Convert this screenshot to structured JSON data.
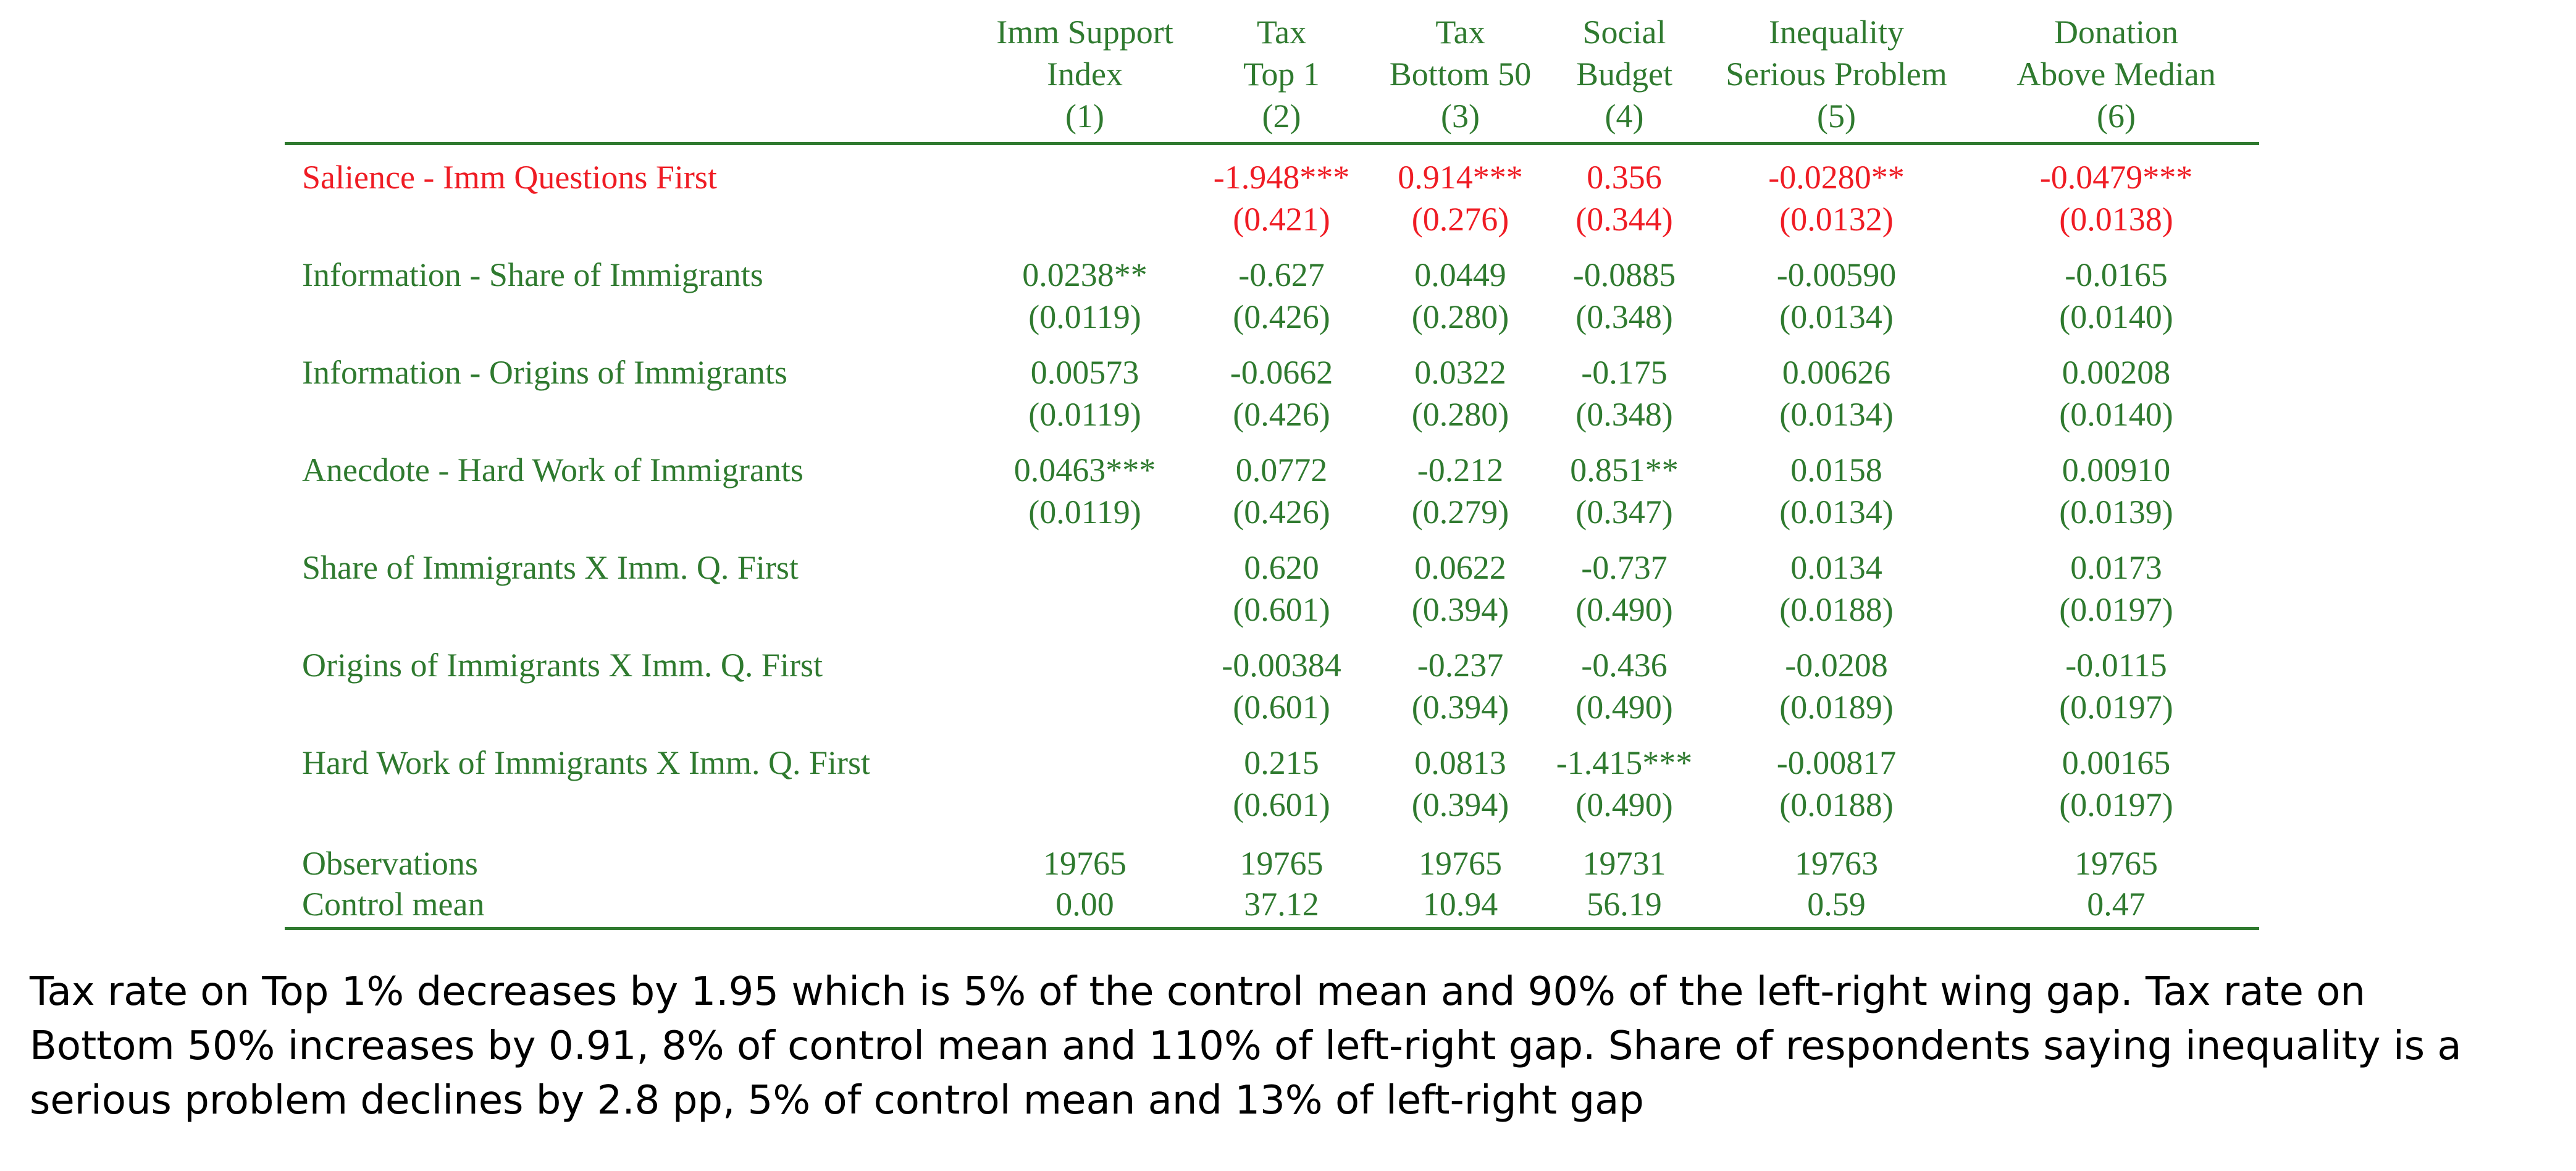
{
  "table": {
    "header": {
      "col1": [
        "Imm Support",
        "Index",
        "(1)"
      ],
      "col2": [
        "Tax",
        "Top 1",
        "(2)"
      ],
      "col3": [
        "Tax",
        "Bottom 50",
        "(3)"
      ],
      "col4": [
        "Social",
        "Budget",
        "(4)"
      ],
      "col5": [
        "Inequality",
        "Serious Problem",
        "(5)"
      ],
      "col6": [
        "Donation",
        "Above Median",
        "(6)"
      ]
    },
    "rows": [
      {
        "label": "Salience - Imm Questions First",
        "coef": [
          "",
          "-1.948***",
          "0.914***",
          "0.356",
          "-0.0280**",
          "-0.0479***"
        ],
        "se": [
          "",
          "(0.421)",
          "(0.276)",
          "(0.344)",
          "(0.0132)",
          "(0.0138)"
        ]
      },
      {
        "label": "Information - Share of Immigrants",
        "coef": [
          "0.0238**",
          "-0.627",
          "0.0449",
          "-0.0885",
          "-0.00590",
          "-0.0165"
        ],
        "se": [
          "(0.0119)",
          "(0.426)",
          "(0.280)",
          "(0.348)",
          "(0.0134)",
          "(0.0140)"
        ]
      },
      {
        "label": "Information - Origins of Immigrants",
        "coef": [
          "0.00573",
          "-0.0662",
          "0.0322",
          "-0.175",
          "0.00626",
          "0.00208"
        ],
        "se": [
          "(0.0119)",
          "(0.426)",
          "(0.280)",
          "(0.348)",
          "(0.0134)",
          "(0.0140)"
        ]
      },
      {
        "label": "Anecdote - Hard Work of Immigrants",
        "coef": [
          "0.0463***",
          "0.0772",
          "-0.212",
          "0.851**",
          "0.0158",
          "0.00910"
        ],
        "se": [
          "(0.0119)",
          "(0.426)",
          "(0.279)",
          "(0.347)",
          "(0.0134)",
          "(0.0139)"
        ]
      },
      {
        "label": "Share of Immigrants X Imm. Q. First",
        "coef": [
          "",
          "0.620",
          "0.0622",
          "-0.737",
          "0.0134",
          "0.0173"
        ],
        "se": [
          "",
          "(0.601)",
          "(0.394)",
          "(0.490)",
          "(0.0188)",
          "(0.0197)"
        ]
      },
      {
        "label": "Origins of Immigrants X Imm. Q. First",
        "coef": [
          "",
          "-0.00384",
          "-0.237",
          "-0.436",
          "-0.0208",
          "-0.0115"
        ],
        "se": [
          "",
          "(0.601)",
          "(0.394)",
          "(0.490)",
          "(0.0189)",
          "(0.0197)"
        ]
      },
      {
        "label": "Hard Work of Immigrants X Imm. Q. First",
        "coef": [
          "",
          "0.215",
          "0.0813",
          "-1.415***",
          "-0.00817",
          "0.00165"
        ],
        "se": [
          "",
          "(0.601)",
          "(0.394)",
          "(0.490)",
          "(0.0188)",
          "(0.0197)"
        ]
      }
    ],
    "observations": {
      "label": "Observations",
      "values": [
        "19765",
        "19765",
        "19765",
        "19731",
        "19763",
        "19765"
      ]
    },
    "control_mean": {
      "label": "Control mean",
      "values": [
        "0.00",
        "37.12",
        "10.94",
        "56.19",
        "0.59",
        "0.47"
      ]
    }
  },
  "notes": {
    "line1": "Tax rate on Top 1% decreases by 1.95 which is 5% of the control mean and 90% of the left-right wing gap. Tax rate on",
    "line2": "Bottom 50% increases by 0.91, 8% of control mean and 110% of left-right gap. Share of respondents saying inequality is a",
    "line3": "serious problem declines by 2.8 pp, 5% of control mean and 13% of left-right gap"
  },
  "colors": {
    "green": "#2f7a2f",
    "red": "#ef1c24"
  }
}
